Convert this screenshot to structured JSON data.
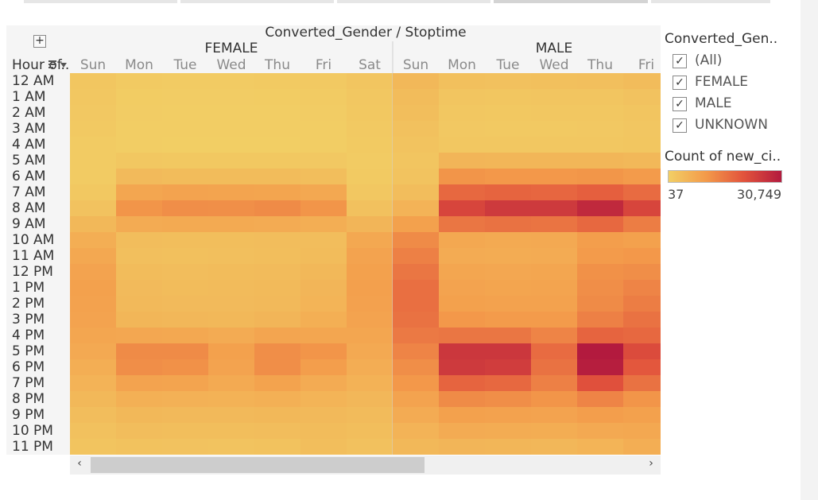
{
  "chart_data": {
    "type": "heatmap",
    "title": "Converted_Gender / Stoptime",
    "column_groups": [
      "FEMALE",
      "MALE"
    ],
    "columns": {
      "FEMALE": [
        "Sun",
        "Mon",
        "Tue",
        "Wed",
        "Thu",
        "Fri",
        "Sat"
      ],
      "MALE": [
        "Sun",
        "Mon",
        "Tue",
        "Wed",
        "Thu",
        "Fri"
      ]
    },
    "row_field": "Hour of..",
    "rows": [
      "12 AM",
      "1 AM",
      "2 AM",
      "3 AM",
      "4 AM",
      "5 AM",
      "6 AM",
      "7 AM",
      "8 AM",
      "9 AM",
      "10 AM",
      "11 AM",
      "12 PM",
      "1 PM",
      "2 PM",
      "3 PM",
      "4 PM",
      "5 PM",
      "6 PM",
      "7 PM",
      "8 PM",
      "9 PM",
      "10 PM",
      "11 PM"
    ],
    "color_range": [
      37,
      30749
    ],
    "values": {
      "FEMALE": [
        [
          1800,
          1000,
          900,
          900,
          1000,
          1200,
          1900
        ],
        [
          1500,
          700,
          600,
          600,
          700,
          800,
          1600
        ],
        [
          1300,
          600,
          500,
          500,
          500,
          600,
          1400
        ],
        [
          1100,
          500,
          400,
          400,
          400,
          500,
          1200
        ],
        [
          900,
          400,
          300,
          300,
          300,
          400,
          1000
        ],
        [
          800,
          1500,
          1400,
          1400,
          1400,
          1300,
          900
        ],
        [
          900,
          4000,
          3800,
          3800,
          3700,
          3400,
          1000
        ],
        [
          1400,
          8000,
          8500,
          8400,
          8200,
          7500,
          1600
        ],
        [
          2500,
          11000,
          12000,
          11800,
          12500,
          11000,
          2800
        ],
        [
          4500,
          7000,
          7200,
          7100,
          7000,
          6500,
          5000
        ],
        [
          6500,
          3500,
          3300,
          3400,
          3500,
          3600,
          7500
        ],
        [
          7500,
          3200,
          3000,
          3100,
          3300,
          3700,
          8500
        ],
        [
          8500,
          3800,
          3600,
          3700,
          3900,
          4500,
          9000
        ],
        [
          9000,
          4000,
          3800,
          3900,
          4100,
          5000,
          9200
        ],
        [
          8800,
          4200,
          4000,
          4000,
          4300,
          5300,
          8900
        ],
        [
          8500,
          4900,
          4700,
          4500,
          5100,
          6300,
          8500
        ],
        [
          8000,
          7800,
          7500,
          7000,
          8100,
          8000,
          8000
        ],
        [
          7300,
          12500,
          12500,
          9000,
          12000,
          11000,
          7400
        ],
        [
          6500,
          12000,
          11500,
          8500,
          12000,
          9500,
          6600
        ],
        [
          5500,
          8500,
          8300,
          7200,
          8600,
          7000,
          5600
        ],
        [
          4500,
          6000,
          5800,
          5600,
          6000,
          5200,
          4600
        ],
        [
          3600,
          4400,
          4300,
          4200,
          4400,
          4300,
          3900
        ],
        [
          2800,
          3500,
          3400,
          3300,
          3500,
          3800,
          3400
        ],
        [
          2200,
          2600,
          2500,
          2400,
          2600,
          3300,
          2800
        ]
      ],
      "MALE": [
        [
          4500,
          3000,
          2800,
          2900,
          3100,
          3800
        ],
        [
          3800,
          2000,
          1800,
          1900,
          2000,
          2500
        ],
        [
          3300,
          1600,
          1400,
          1500,
          1600,
          2000
        ],
        [
          2800,
          1300,
          1100,
          1200,
          1300,
          1700
        ],
        [
          2400,
          1600,
          1500,
          1500,
          1600,
          1800
        ],
        [
          2000,
          5000,
          4800,
          4800,
          4800,
          4500
        ],
        [
          2300,
          11000,
          10500,
          10500,
          10800,
          10000
        ],
        [
          3500,
          17500,
          18000,
          17800,
          18800,
          17000
        ],
        [
          5500,
          23000,
          25000,
          25000,
          28000,
          23000
        ],
        [
          9000,
          15500,
          16000,
          15800,
          17500,
          14500
        ],
        [
          12500,
          7500,
          7200,
          7300,
          9500,
          9000
        ],
        [
          14000,
          7000,
          6800,
          6900,
          10000,
          10500
        ],
        [
          15500,
          8000,
          7800,
          8000,
          11500,
          12000
        ],
        [
          16500,
          8500,
          8200,
          8400,
          12000,
          13500
        ],
        [
          16500,
          9000,
          8700,
          8800,
          12500,
          14500
        ],
        [
          16000,
          10500,
          10000,
          10000,
          14000,
          16000
        ],
        [
          15000,
          15500,
          15500,
          13500,
          18000,
          17500
        ],
        [
          13500,
          25500,
          25500,
          17000,
          30749,
          22000
        ],
        [
          12000,
          25000,
          24500,
          16000,
          30000,
          20000
        ],
        [
          10500,
          18000,
          17500,
          14000,
          21000,
          16000
        ],
        [
          8500,
          12500,
          12000,
          11000,
          13500,
          11000
        ],
        [
          7000,
          9000,
          8800,
          8500,
          9500,
          9000
        ],
        [
          5500,
          7000,
          6800,
          6700,
          7300,
          7500
        ],
        [
          4500,
          5000,
          4800,
          4700,
          5200,
          6500
        ]
      ]
    }
  },
  "legend": {
    "filter_title": "Converted_Gen..",
    "filter_items": [
      "(All)",
      "FEMALE",
      "MALE",
      "UNKNOWN"
    ],
    "color_title": "Count of new_ci..",
    "min_label": "37",
    "max_label": "30,749",
    "colors": [
      "#f2cf65",
      "#f39a4a",
      "#e2533c",
      "#b31a3e"
    ]
  },
  "ui": {
    "expand_icon": "+",
    "sort_icon": "sort-icon",
    "check_glyph": "✓",
    "scroll_left": "‹",
    "scroll_right": "›"
  }
}
